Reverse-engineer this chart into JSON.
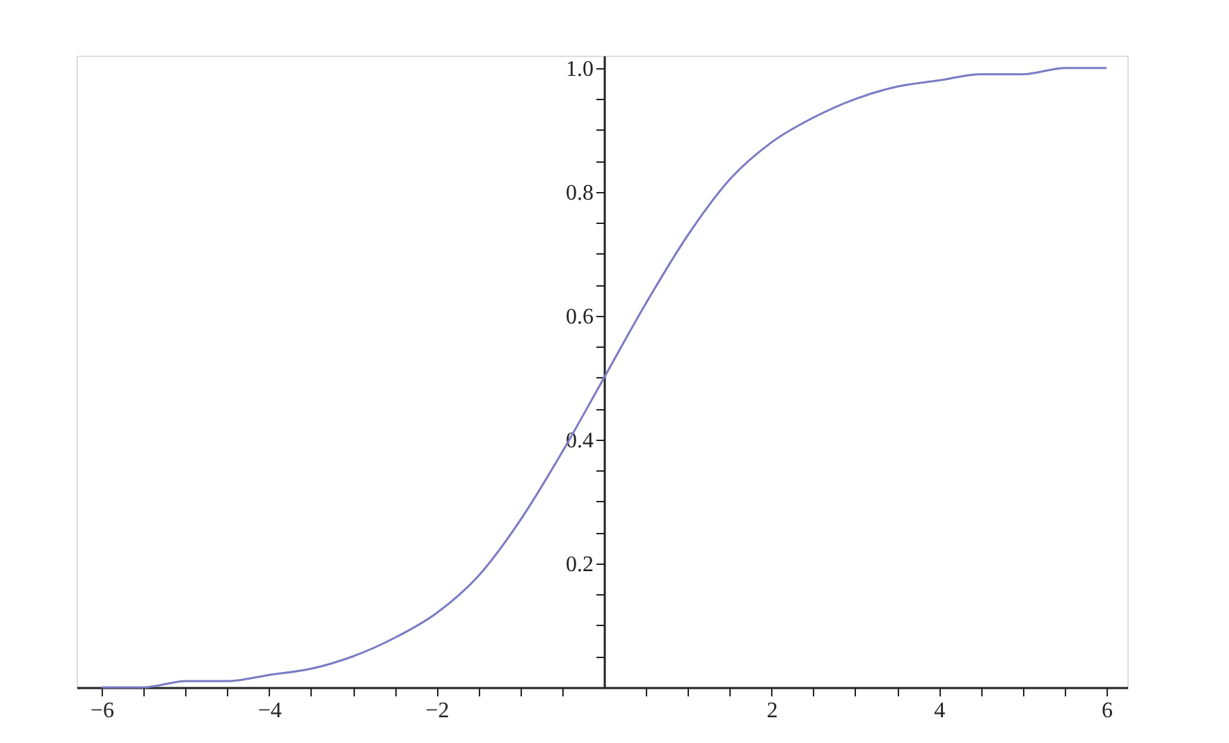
{
  "chart_data": {
    "type": "line",
    "x": [
      -6,
      -5.5,
      -5,
      -4.5,
      -4,
      -3.5,
      -3,
      -2.5,
      -2,
      -1.5,
      -1,
      -0.5,
      0,
      0.5,
      1,
      1.5,
      2,
      2.5,
      3,
      3.5,
      4,
      4.5,
      5,
      5.5,
      6
    ],
    "series": [
      {
        "color": "#7b7bc4",
        "values": [
          0,
          0,
          0.01,
          0.01,
          0.02,
          0.03,
          0.05,
          0.08,
          0.12,
          0.18,
          0.27,
          0.38,
          0.5,
          0.62,
          0.73,
          0.82,
          0.88,
          0.92,
          0.95,
          0.97,
          0.98,
          0.99,
          0.99,
          1.0,
          1.0
        ]
      }
    ],
    "xlim": [
      -6.3,
      6.25
    ],
    "ylim": [
      0,
      1.02
    ],
    "xticks": [
      {
        "value": -6,
        "label": "−6"
      },
      {
        "value": -5.5,
        "label": null
      },
      {
        "value": -5,
        "label": null
      },
      {
        "value": -4.5,
        "label": null
      },
      {
        "value": -4,
        "label": "−4"
      },
      {
        "value": -3.5,
        "label": null
      },
      {
        "value": -3,
        "label": null
      },
      {
        "value": -2.5,
        "label": null
      },
      {
        "value": -2,
        "label": "−2"
      },
      {
        "value": -1.5,
        "label": null
      },
      {
        "value": -1,
        "label": null
      },
      {
        "value": -0.5,
        "label": null
      },
      {
        "value": 0.5,
        "label": null
      },
      {
        "value": 1,
        "label": null
      },
      {
        "value": 1.5,
        "label": null
      },
      2,
      {
        "value": 2.5,
        "label": null
      },
      {
        "value": 3,
        "label": null
      },
      {
        "value": 3.5,
        "label": null
      },
      4,
      {
        "value": 4.5,
        "label": null
      },
      {
        "value": 5,
        "label": null
      },
      {
        "value": 5.5,
        "label": null
      },
      6
    ],
    "yticks": [
      {
        "value": 0.05,
        "label": null
      },
      {
        "value": 0.1,
        "label": null
      },
      {
        "value": 0.15,
        "label": null
      },
      0.2,
      {
        "value": 0.25,
        "label": null
      },
      {
        "value": 0.3,
        "label": null
      },
      {
        "value": 0.35,
        "label": null
      },
      0.4,
      {
        "value": 0.45,
        "label": null
      },
      {
        "value": 0.5,
        "label": null
      },
      {
        "value": 0.55,
        "label": null
      },
      0.6,
      {
        "value": 0.65,
        "label": null
      },
      {
        "value": 0.7,
        "label": null
      },
      {
        "value": 0.75,
        "label": null
      },
      0.8,
      {
        "value": 0.85,
        "label": null
      },
      {
        "value": 0.9,
        "label": null
      },
      {
        "value": 0.95,
        "label": null
      },
      {
        "value": 1.0,
        "label": "1.0"
      }
    ],
    "grid": false,
    "marker": "none",
    "line_style": "solid"
  }
}
